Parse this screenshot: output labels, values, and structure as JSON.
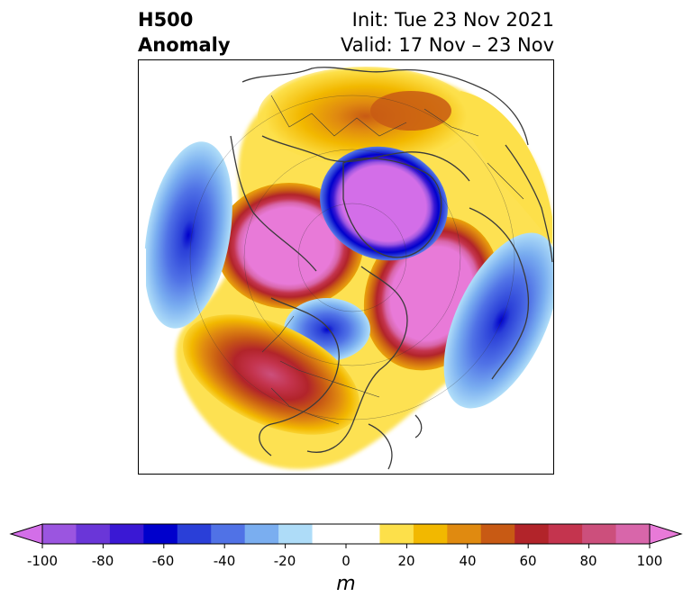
{
  "header": {
    "title_line1": "H500",
    "title_line2": "Anomaly",
    "init": "Init: Tue 23 Nov 2021",
    "valid": "Valid: 17 Nov – 23 Nov"
  },
  "colorbar": {
    "units": "m",
    "range": [
      -100,
      100
    ],
    "ticks": [
      "-100",
      "-80",
      "-60",
      "-40",
      "-20",
      "0",
      "20",
      "40",
      "60",
      "80",
      "100"
    ],
    "colors": [
      "#d36ee8",
      "#9b55e0",
      "#6a36d8",
      "#3a18d4",
      "#0000cc",
      "#2a3fd8",
      "#5072e6",
      "#7aaef0",
      "#aedcf8",
      "#ffffff",
      "#ffffff",
      "#fde04a",
      "#f2b800",
      "#e08a10",
      "#c85a14",
      "#b2242a",
      "#c4344e",
      "#cc4f7c",
      "#d866aa",
      "#e87ad8"
    ]
  },
  "map": {
    "projection": "north-polar-stereographic",
    "field": "500 hPa geopotential height anomaly"
  }
}
